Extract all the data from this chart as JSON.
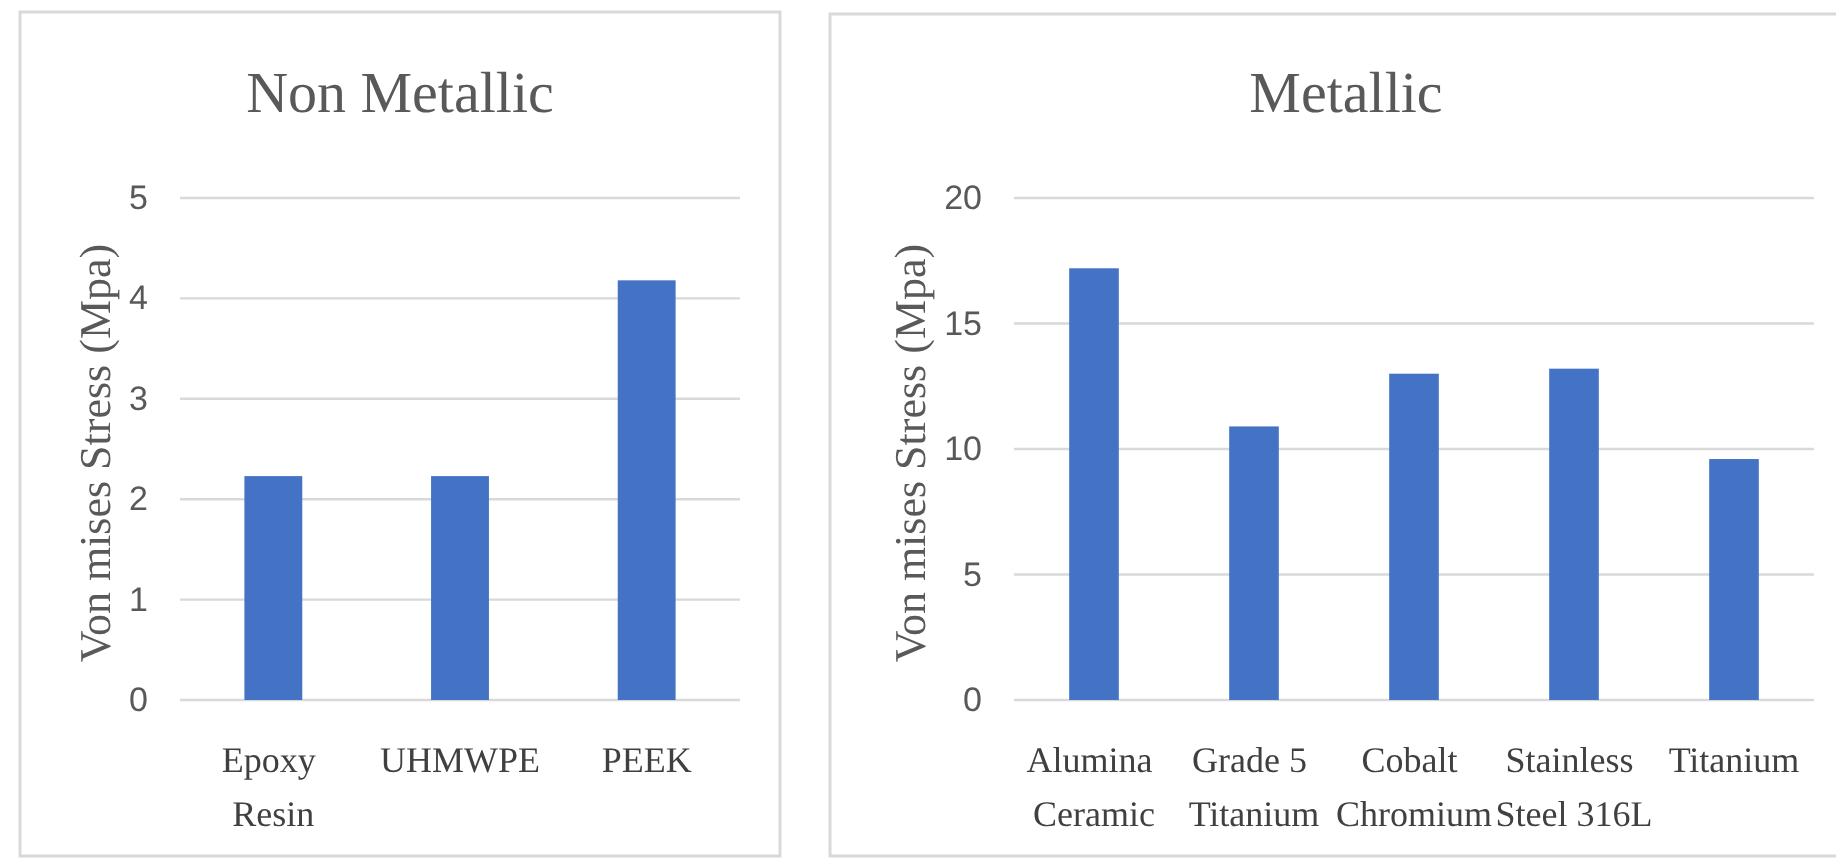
{
  "chart_data": [
    {
      "type": "bar",
      "title": "Non Metallic",
      "ylabel": "Von mises Stress (Mpa)",
      "categories": [
        "Epoxy Resin",
        "UHMWPE",
        "PEEK"
      ],
      "values": [
        2.23,
        2.23,
        4.18
      ],
      "color": "#4472c4",
      "ylim": [
        0,
        5
      ],
      "yticks": [
        0,
        1,
        2,
        3,
        4,
        5
      ],
      "grid": "y"
    },
    {
      "type": "bar",
      "title": "Metallic",
      "ylabel": "Von mises Stress (Mpa)",
      "categories": [
        "Alumina Ceramic",
        "Grade 5 Titanium",
        "Cobalt Chromium",
        "Stainless Steel 316L",
        "Titanium"
      ],
      "values": [
        17.2,
        10.9,
        13.0,
        13.2,
        9.6
      ],
      "color": "#4472c4",
      "ylim": [
        0,
        20
      ],
      "yticks": [
        0,
        5,
        10,
        15,
        20
      ],
      "grid": "y"
    }
  ]
}
